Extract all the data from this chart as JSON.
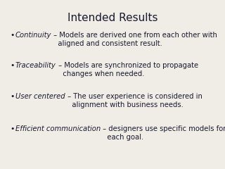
{
  "title": "Intended Results",
  "title_fontsize": 11,
  "title_color": "#1a1a2e",
  "background_color": "#f0ece6",
  "bullet_items": [
    {
      "italic_part": "Continuity",
      "normal_part": " – Models are derived one from each other with\n   aligned and consistent result."
    },
    {
      "italic_part": "Traceability",
      "normal_part": " – Models are synchronized to propagate\n   changes when needed."
    },
    {
      "italic_part": "User centered",
      "normal_part": " – The user experience is considered in\n   alignment with business needs."
    },
    {
      "italic_part": "Efficient communication",
      "normal_part": " – designers use specific models for\n   each goal."
    }
  ],
  "text_color": "#1a1a2e",
  "text_fontsize": 7.2,
  "bullet_char": "•",
  "font_family": "DejaVu Sans"
}
